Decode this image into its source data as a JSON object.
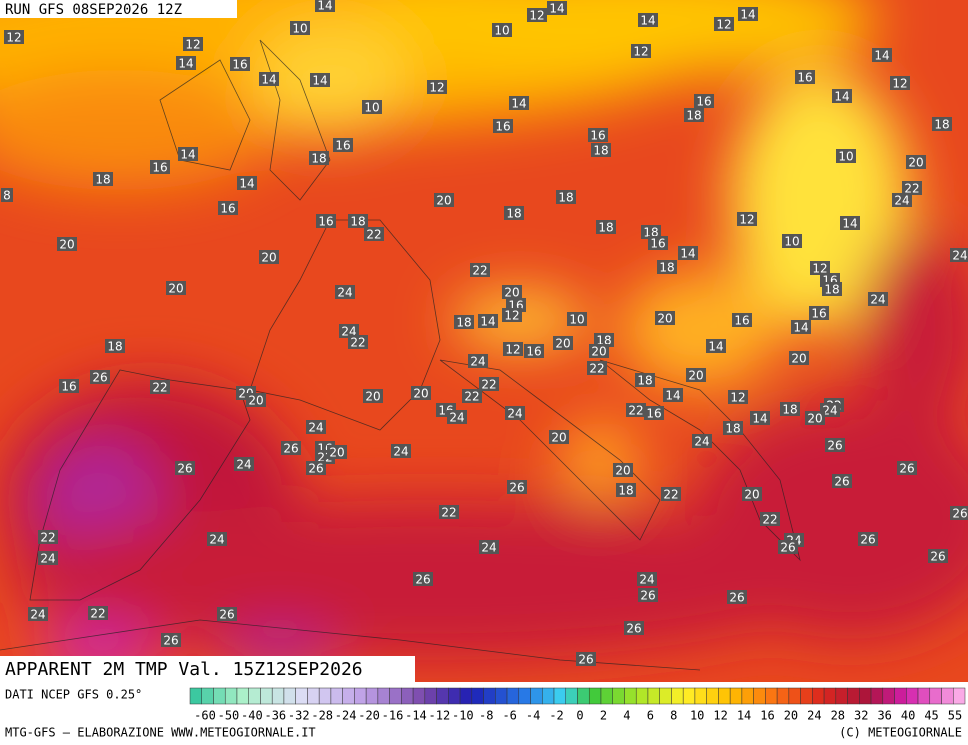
{
  "header": {
    "run": "RUN GFS 08SEP2026 12Z"
  },
  "map": {
    "title": "APPARENT 2M TMP Val. 15Z12SEP2026",
    "labels": [
      "14",
      "12",
      "14",
      "14",
      "14",
      "12",
      "10",
      "10",
      "12",
      "12",
      "12",
      "14",
      "16",
      "14",
      "14",
      "12",
      "14",
      "16",
      "12",
      "10",
      "14",
      "16",
      "14",
      "18",
      "16",
      "18",
      "16",
      "16",
      "18",
      "14",
      "10",
      "18",
      "16",
      "20",
      "18",
      "14",
      "22",
      "8",
      "20",
      "18",
      "24",
      "16",
      "18",
      "16",
      "18",
      "12",
      "18",
      "22",
      "14",
      "18",
      "16",
      "20",
      "10",
      "14",
      "20",
      "24",
      "18",
      "12",
      "22",
      "16",
      "18",
      "20",
      "24",
      "20",
      "24",
      "16",
      "12",
      "18",
      "14",
      "10",
      "20",
      "16",
      "16",
      "14",
      "24",
      "22",
      "18",
      "12",
      "16",
      "20",
      "20",
      "14",
      "18",
      "24",
      "22",
      "20",
      "16",
      "26",
      "22",
      "18",
      "20",
      "22",
      "20",
      "20",
      "20",
      "20",
      "22",
      "14",
      "12",
      "18",
      "22",
      "24",
      "20",
      "14",
      "16",
      "24",
      "22",
      "16",
      "24",
      "24",
      "18",
      "24",
      "26",
      "20",
      "26",
      "16",
      "22",
      "20",
      "24",
      "26",
      "26",
      "24",
      "20",
      "26",
      "26",
      "18",
      "26",
      "22",
      "20",
      "26",
      "22",
      "22",
      "24",
      "26",
      "26",
      "22",
      "24",
      "24",
      "24",
      "26",
      "26",
      "24",
      "26",
      "26",
      "24",
      "22",
      "26",
      "26",
      "26",
      "26"
    ]
  },
  "legend": {
    "ticks": [
      "-60",
      "-50",
      "-40",
      "-36",
      "-32",
      "-28",
      "-24",
      "-20",
      "-16",
      "-14",
      "-12",
      "-10",
      "-8",
      "-6",
      "-4",
      "-2",
      "0",
      "2",
      "4",
      "6",
      "8",
      "10",
      "12",
      "14",
      "16",
      "20",
      "24",
      "28",
      "32",
      "36",
      "40",
      "45",
      "55"
    ]
  },
  "footer": {
    "source": "DATI NCEP GFS 0.25°",
    "credit": "MTG-GFS — ELABORAZIONE WWW.METEOGIORNALE.IT",
    "copyright": "(C) METEOGIORNALE"
  }
}
